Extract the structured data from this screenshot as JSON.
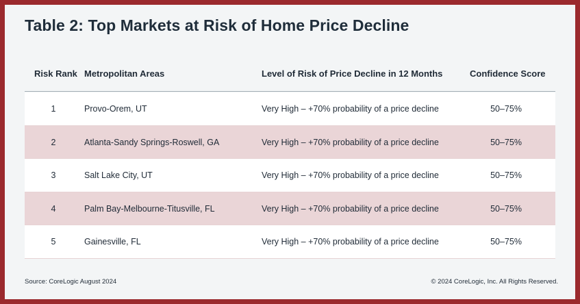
{
  "chart_data": {
    "type": "table",
    "title": "Table 2: Top Markets at Risk of Home Price Decline",
    "columns": [
      "Risk Rank",
      "Metropolitan Areas",
      "Level of Risk of Price Decline in 12 Months",
      "Confidence Score"
    ],
    "rows": [
      {
        "rank": "1",
        "metro": "Provo-Orem, UT",
        "level": "Very High – +70% probability of a price decline",
        "score": "50–75%"
      },
      {
        "rank": "2",
        "metro": "Atlanta-Sandy Springs-Roswell, GA",
        "level": "Very High – +70% probability of a price decline",
        "score": "50–75%"
      },
      {
        "rank": "3",
        "metro": "Salt Lake City, UT",
        "level": "Very High – +70% probability of a price decline",
        "score": "50–75%"
      },
      {
        "rank": "4",
        "metro": "Palm Bay-Melbourne-Titusville, FL",
        "level": "Very High – +70% probability of a price decline",
        "score": "50–75%"
      },
      {
        "rank": "5",
        "metro": "Gainesville, FL",
        "level": "Very High – +70% probability of a price decline",
        "score": "50–75%"
      }
    ]
  },
  "footer": {
    "source": "Source: CoreLogic August 2024",
    "copyright": "© 2024 CoreLogic, Inc. All Rights Reserved."
  },
  "colors": {
    "frame": "#9b2a2e",
    "card": "#f3f5f6",
    "row_stripe": "#ead5d7",
    "row_plain": "#ffffff",
    "text": "#1f2a36"
  }
}
